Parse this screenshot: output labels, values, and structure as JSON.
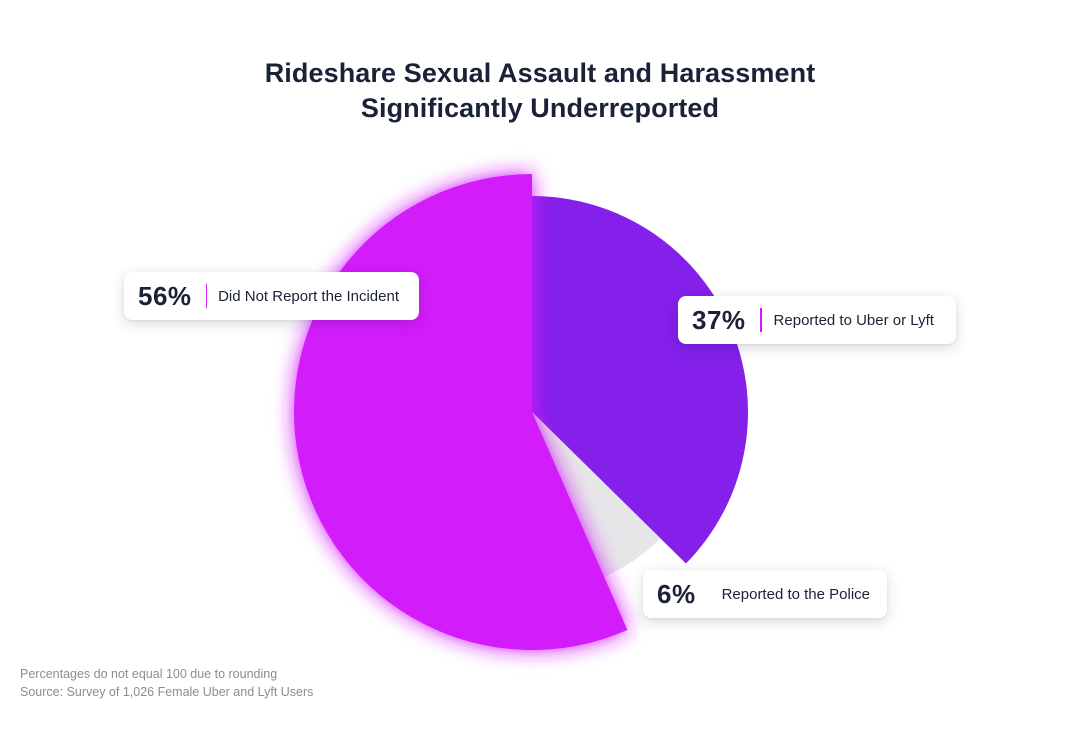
{
  "chart_data": {
    "type": "pie",
    "title": [
      "Rideshare Sexual Assault and Harassment",
      "Significantly Underreported"
    ],
    "slices": [
      {
        "label": "Reported to Uber or Lyft",
        "value": 37,
        "display": "37%",
        "color": "#8420ea"
      },
      {
        "label": "Reported to the Police",
        "value": 6,
        "display": "6%",
        "color": "#e6e6e8"
      },
      {
        "label": "Did Not Report the Incident",
        "value": 56,
        "display": "56%",
        "color": "#d21cfa"
      }
    ],
    "callouts": [
      {
        "pct": "56%",
        "label": "Did Not Report the Incident"
      },
      {
        "pct": "37%",
        "label": "Reported to Uber or Lyft"
      },
      {
        "pct": "6%",
        "label": "Reported to the Police"
      }
    ],
    "accent_color": "#d21cf5",
    "legend": "callouts"
  },
  "footnotes": {
    "line1": "Percentages do not equal 100 due to rounding",
    "line2": "Source: Survey of 1,026 Female Uber and Lyft Users"
  }
}
